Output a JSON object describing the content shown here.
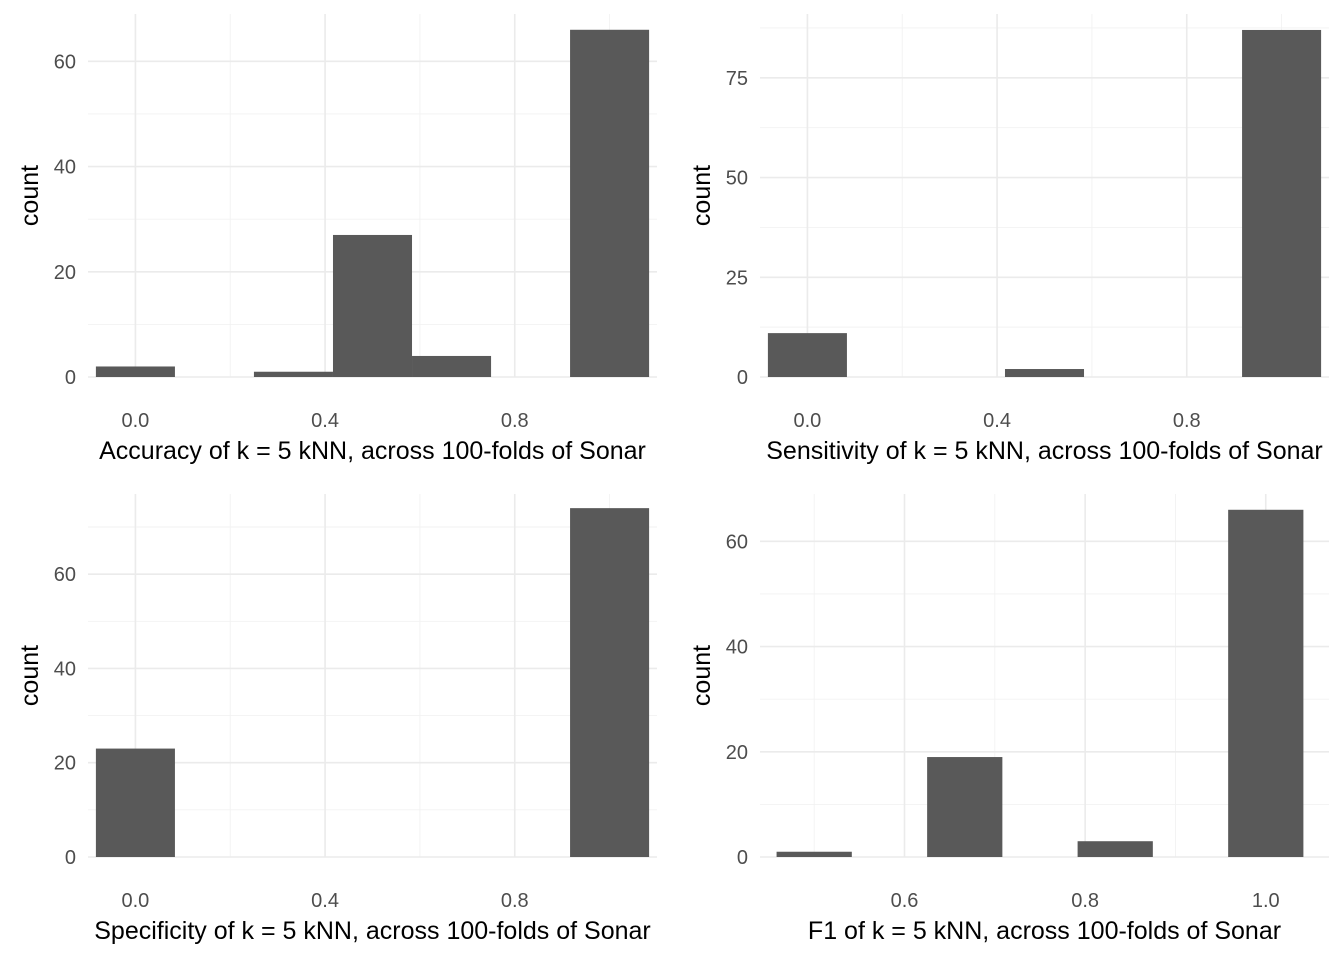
{
  "colors": {
    "bar": "#595959",
    "grid_major": "#ebebeb",
    "grid_minor": "#f2f2f2",
    "tick_text": "#4d4d4d"
  },
  "chart_data": [
    {
      "type": "bar",
      "title": "",
      "xlabel": "Accuracy of k = 5 kNN, across 100-folds of Sonar",
      "ylabel": "count",
      "bin_width": 0.1667,
      "x": [
        0.0,
        0.3333,
        0.5,
        0.6667,
        1.0
      ],
      "values": [
        2,
        1,
        27,
        4,
        66
      ],
      "xlim": [
        -0.1,
        1.1
      ],
      "ylim": [
        0,
        69
      ],
      "xticks": [
        0.0,
        0.4,
        0.8
      ],
      "xtick_labels": [
        "0.0",
        "0.4",
        "0.8"
      ],
      "yticks": [
        0,
        20,
        40,
        60
      ],
      "ytick_labels": [
        "0",
        "20",
        "40",
        "60"
      ],
      "grid": true
    },
    {
      "type": "bar",
      "title": "",
      "xlabel": "Sensitivity of k = 5 kNN, across 100-folds of Sonar",
      "ylabel": "count",
      "bin_width": 0.1667,
      "x": [
        0.0,
        0.5,
        1.0
      ],
      "values": [
        11,
        2,
        87
      ],
      "xlim": [
        -0.1,
        1.1
      ],
      "ylim": [
        0,
        91
      ],
      "xticks": [
        0.0,
        0.4,
        0.8
      ],
      "xtick_labels": [
        "0.0",
        "0.4",
        "0.8"
      ],
      "yticks": [
        0,
        25,
        50,
        75
      ],
      "ytick_labels": [
        "0",
        "25",
        "50",
        "75"
      ],
      "grid": true
    },
    {
      "type": "bar",
      "title": "",
      "xlabel": "Specificity of k = 5 kNN, across 100-folds of Sonar",
      "ylabel": "count",
      "bin_width": 0.1667,
      "x": [
        0.0,
        1.0
      ],
      "values": [
        23,
        74
      ],
      "xlim": [
        -0.1,
        1.1
      ],
      "ylim": [
        0,
        77
      ],
      "xticks": [
        0.0,
        0.4,
        0.8
      ],
      "xtick_labels": [
        "0.0",
        "0.4",
        "0.8"
      ],
      "yticks": [
        0,
        20,
        40,
        60
      ],
      "ytick_labels": [
        "0",
        "20",
        "40",
        "60"
      ],
      "grid": true
    },
    {
      "type": "bar",
      "title": "",
      "xlabel": "F1 of k = 5 kNN, across 100-folds of Sonar",
      "ylabel": "count",
      "bin_width": 0.0833,
      "x": [
        0.5,
        0.6667,
        0.8333,
        1.0
      ],
      "values": [
        1,
        19,
        3,
        66
      ],
      "xlim": [
        0.44,
        1.07
      ],
      "ylim": [
        0,
        69
      ],
      "xticks": [
        0.6,
        0.8,
        1.0
      ],
      "xtick_labels": [
        "0.6",
        "0.8",
        "1.0"
      ],
      "yticks": [
        0,
        20,
        40,
        60
      ],
      "ytick_labels": [
        "0",
        "20",
        "40",
        "60"
      ],
      "grid": true
    }
  ]
}
